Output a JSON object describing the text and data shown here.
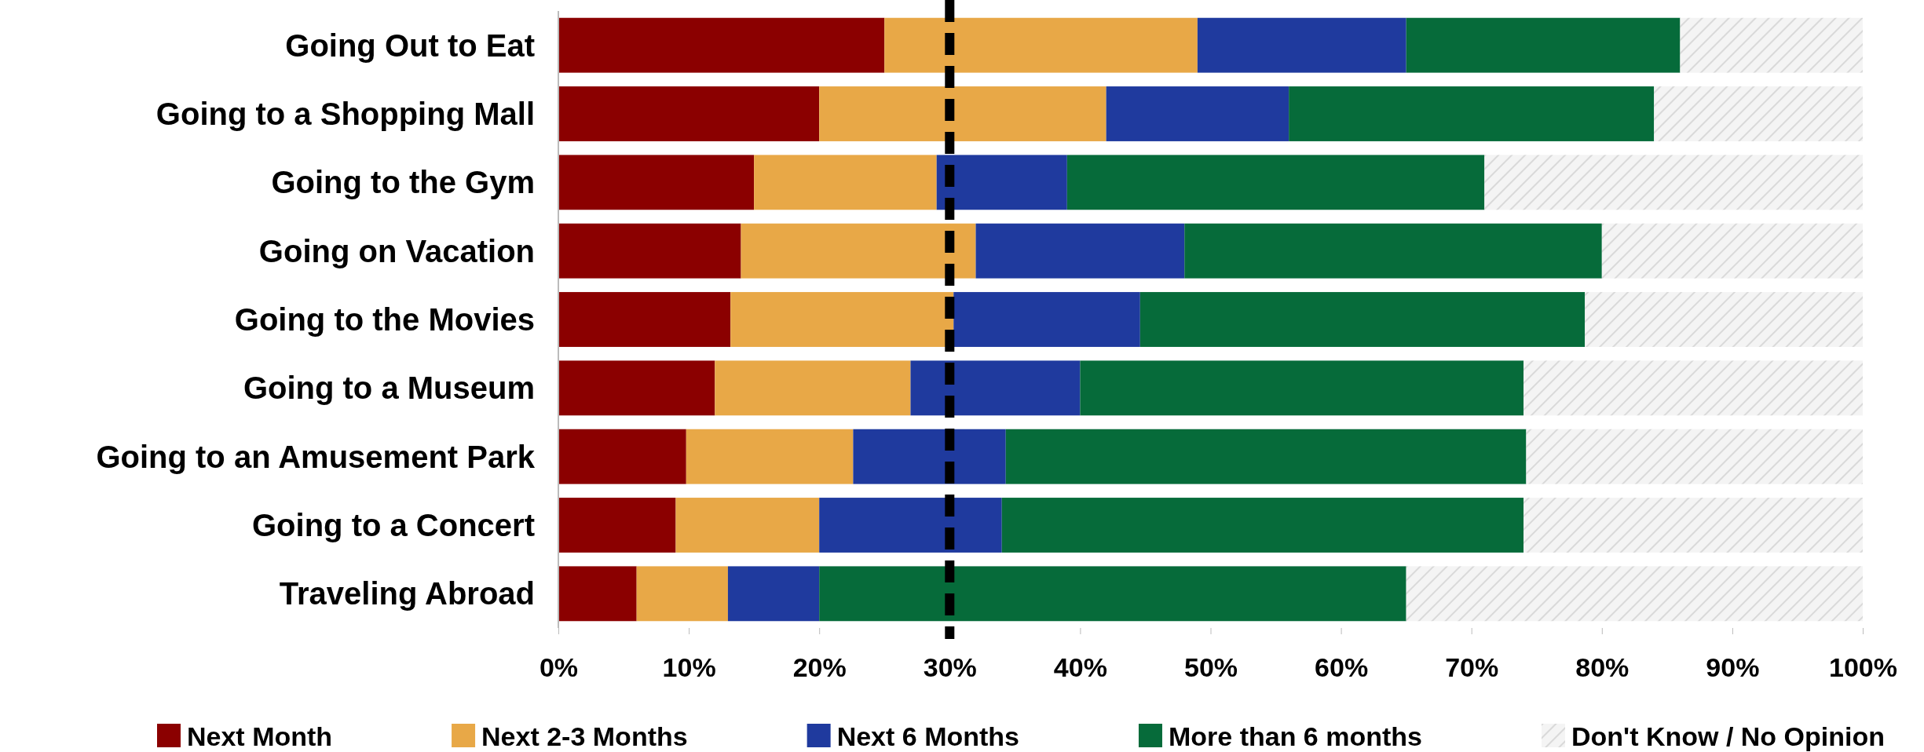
{
  "chart_data": {
    "type": "bar",
    "orientation": "horizontal",
    "stacked": true,
    "categories": [
      "Going Out to Eat",
      "Going to a Shopping Mall",
      "Going to the Gym",
      "Going on Vacation",
      "Going to the Movies",
      "Going to a Museum",
      "Going to an Amusement Park",
      "Going to a Concert",
      "Traveling Abroad"
    ],
    "series": [
      {
        "name": "Next Month",
        "color": "#8b0000",
        "values": [
          25,
          20,
          15,
          14,
          13.2,
          12,
          9.8,
          9,
          6
        ]
      },
      {
        "name": "Next 2-3 Months",
        "color": "#e8a847",
        "values": [
          24,
          22,
          14,
          18,
          17.1,
          15,
          12.8,
          11,
          7
        ]
      },
      {
        "name": "Next 6 Months",
        "color": "#1f3a9e",
        "values": [
          16,
          14,
          10,
          16,
          14.3,
          13,
          11.7,
          14,
          7
        ]
      },
      {
        "name": "More than 6 months",
        "color": "#066b3a",
        "values": [
          21,
          28,
          32,
          32,
          34.1,
          34,
          39.9,
          40,
          45
        ]
      },
      {
        "name": "Don't Know / No Opinion",
        "color": "#d9d9d9",
        "values": [
          14,
          16,
          29,
          20,
          21.3,
          26,
          25.8,
          26,
          35
        ]
      }
    ],
    "xlim": [
      0,
      100
    ],
    "xticks": [
      {
        "value": 0,
        "label": "0%"
      },
      {
        "value": 10,
        "label": "10%"
      },
      {
        "value": 20,
        "label": "20%"
      },
      {
        "value": 30,
        "label": "30%"
      },
      {
        "value": 40,
        "label": "40%"
      },
      {
        "value": 50,
        "label": "50%"
      },
      {
        "value": 60,
        "label": "60%"
      },
      {
        "value": 70,
        "label": "70%"
      },
      {
        "value": 80,
        "label": "80%"
      },
      {
        "value": 90,
        "label": "90%"
      },
      {
        "value": 100,
        "label": "100%"
      }
    ],
    "ref_lines": [
      {
        "axis": "x",
        "value": 30,
        "color": "#000000",
        "line_style": "dashed"
      }
    ],
    "grid": false,
    "legend": "bottom"
  }
}
